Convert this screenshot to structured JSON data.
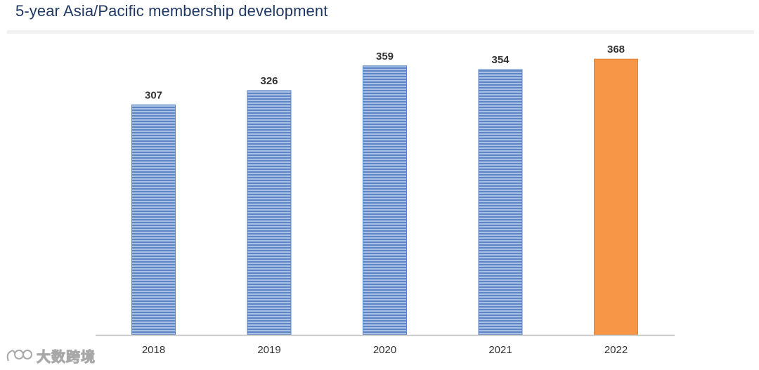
{
  "chart_data": {
    "type": "bar",
    "title": "5-year Asia/Pacific membership development",
    "categories": [
      "2018",
      "2019",
      "2020",
      "2021",
      "2022"
    ],
    "values": [
      307,
      326,
      359,
      354,
      368
    ],
    "data_labels": [
      "307",
      "326",
      "359",
      "354",
      "368"
    ],
    "xlabel": "",
    "ylabel": "",
    "ylim": [
      0,
      400
    ],
    "grid": false,
    "legend": "none",
    "colors": {
      "default_bar": "#7f9fd0",
      "highlight_bar": "#f79646",
      "highlight_index": 4,
      "title": "#1f3864",
      "axis": "#bfbfbf",
      "text": "#333333"
    }
  },
  "watermark": {
    "text": "大数跨境",
    "icon": "logo-icon"
  }
}
